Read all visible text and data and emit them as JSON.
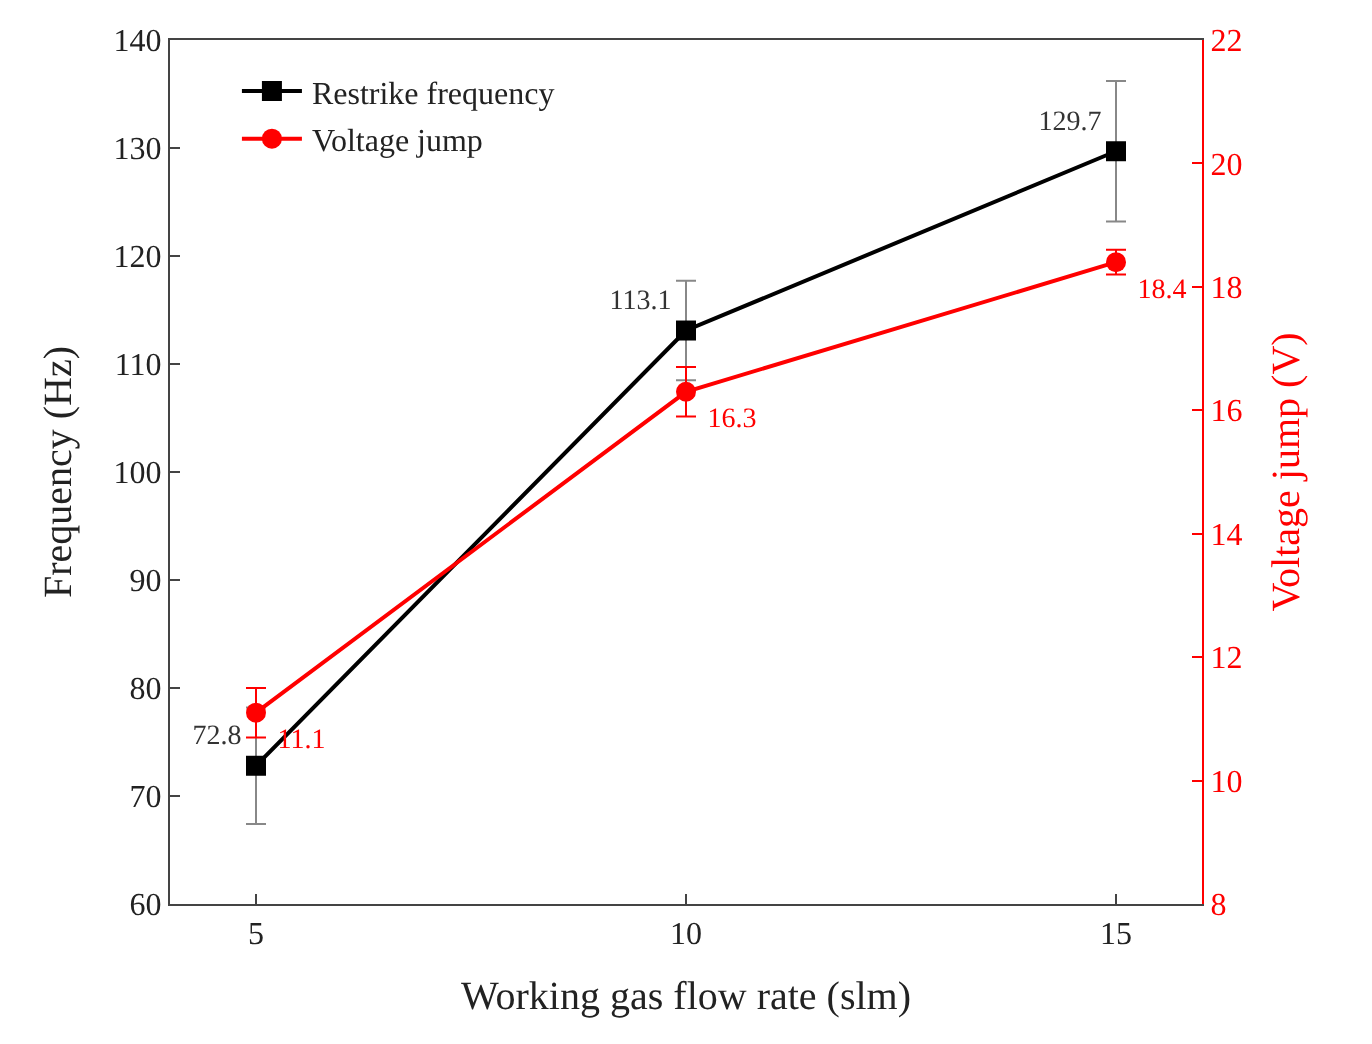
{
  "chart_data": {
    "type": "line",
    "xlabel": "Working gas flow rate (slm)",
    "ylabel": "Frequency (Hz)",
    "y2label": "Voltage jump (V)",
    "x": [
      5,
      10,
      15
    ],
    "xlim": [
      4,
      16
    ],
    "xticks": [
      5,
      10,
      15
    ],
    "ylim": [
      60,
      140
    ],
    "yticks": [
      60,
      70,
      80,
      90,
      100,
      110,
      120,
      130,
      140
    ],
    "y2lim": [
      8,
      22
    ],
    "y2ticks": [
      8,
      10,
      12,
      14,
      16,
      18,
      20,
      22
    ],
    "series": [
      {
        "name": "Restrike frequency",
        "color": "#000000",
        "values": [
          72.8,
          113.1,
          129.7
        ],
        "errors": [
          5.4,
          4.6,
          6.5
        ],
        "marker": "square"
      },
      {
        "name": "Voltage jump",
        "color": "#ff0000",
        "values": [
          11.1,
          16.3,
          18.4
        ],
        "errors": [
          0.4,
          0.4,
          0.2
        ],
        "marker": "circle",
        "axis": "y2"
      }
    ],
    "data_labels": true,
    "legend": "top left"
  }
}
